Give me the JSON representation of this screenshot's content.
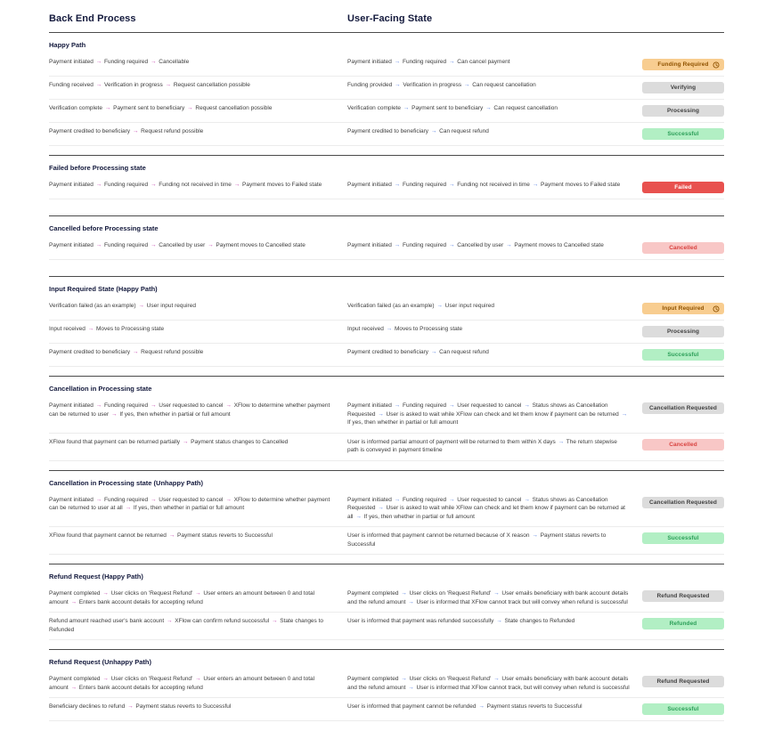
{
  "header": {
    "left": "Back End Process",
    "right": "User-Facing State"
  },
  "colors": {
    "backend_arrow": "#c443ae",
    "user_arrow": "#4f7ae0"
  },
  "badge_styles": {
    "orange": {
      "bg": "#f8cd90",
      "text": "#8f5200"
    },
    "gray": {
      "bg": "#dcdcdc",
      "text": "#3f3f3f"
    },
    "green": {
      "bg": "#b2efc4",
      "text": "#2a9e57"
    },
    "red": {
      "bg": "#e8514e",
      "text": "#ffffff"
    },
    "pink": {
      "bg": "#f8c7c6",
      "text": "#d8413e"
    }
  },
  "sections": [
    {
      "title": "Happy Path",
      "rows": [
        {
          "left": "Payment initiated → Funding required → Cancellable",
          "right": "Payment initiated → Funding required → Can cancel payment",
          "badge": {
            "label": "Funding Required",
            "style": "orange",
            "clock": true
          }
        },
        {
          "left": "Funding received → Verification in progress → Request cancellation possible",
          "right": "Funding provided → Verification in progress → Can request cancellation",
          "badge": {
            "label": "Verifying",
            "style": "gray",
            "clock": false
          }
        },
        {
          "left": "Verification complete → Payment sent to beneficiary → Request cancellation possible",
          "right": "Verification complete → Payment sent to beneficiary → Can request cancellation",
          "badge": {
            "label": "Processing",
            "style": "gray",
            "clock": false
          }
        },
        {
          "left": "Payment credited to beneficiary → Request refund possible",
          "right": "Payment credited to beneficiary → Can request refund",
          "badge": {
            "label": "Successful",
            "style": "green",
            "clock": false
          }
        }
      ]
    },
    {
      "title": "Failed before Processing state",
      "rows": [
        {
          "left": "Payment initiated → Funding required → Funding not received in time → Payment moves to Failed state",
          "right": "Payment initiated → Funding required → Funding not received in time → Payment moves to Failed state",
          "badge": {
            "label": "Failed",
            "style": "red",
            "clock": false
          }
        }
      ]
    },
    {
      "title": "Cancelled before Processing state",
      "rows": [
        {
          "left": "Payment initiated → Funding required → Cancelled by user → Payment moves to Cancelled state",
          "right": "Payment initiated → Funding required → Cancelled by user → Payment moves to Cancelled state",
          "badge": {
            "label": "Cancelled",
            "style": "pink",
            "clock": false
          }
        }
      ]
    },
    {
      "title": "Input Required State (Happy Path)",
      "rows": [
        {
          "left": "Verification failed (as an example) → User input required",
          "right": "Verification failed (as an example) → User input required",
          "badge": {
            "label": "Input Required",
            "style": "orange",
            "clock": true
          }
        },
        {
          "left": "Input received → Moves to Processing state",
          "right": "Input received → Moves to Processing state",
          "badge": {
            "label": "Processing",
            "style": "gray",
            "clock": false
          }
        },
        {
          "left": "Payment credited to beneficiary → Request refund possible",
          "right": "Payment credited to beneficiary → Can request refund",
          "badge": {
            "label": "Successful",
            "style": "green",
            "clock": false
          }
        }
      ]
    },
    {
      "title": "Cancellation in Processing state",
      "rows": [
        {
          "left": "Payment initiated → Funding required → User requested to cancel → XFlow to determine whether payment can be returned to user → If yes, then whether in partial or full amount",
          "right": "Payment initiated → Funding required → User requested to cancel → Status shows as Cancellation Requested → User is asked to wait while XFlow can check and let them know if payment can be returned → If yes, then whether in partial or full amount",
          "badge": {
            "label": "Cancellation Requested",
            "style": "gray",
            "clock": false
          }
        },
        {
          "left": "XFlow found that payment can be returned partially → Payment status changes to Cancelled",
          "right": "User is informed partial amount of payment will be returned to them within X days → The return stepwise path is conveyed in payment timeline",
          "badge": {
            "label": "Cancelled",
            "style": "pink",
            "clock": false
          }
        }
      ]
    },
    {
      "title": "Cancellation in Processing state (Unhappy Path)",
      "rows": [
        {
          "left": "Payment initiated → Funding required → User requested to cancel → XFlow to determine whether payment can be returned to user at all → If yes, then whether in partial or full amount",
          "right": "Payment initiated → Funding required → User requested to cancel → Status shows as Cancellation Requested → User is asked to wait while XFlow can check and let them know if payment can be returned at all → If yes, then whether in partial or full amount",
          "badge": {
            "label": "Cancellation Requested",
            "style": "gray",
            "clock": false
          }
        },
        {
          "left": "XFlow found that payment cannot be returned → Payment status reverts to Successful",
          "right": "User is informed that payment cannot be returned because of X reason → Payment status reverts to Successful",
          "badge": {
            "label": "Successful",
            "style": "green",
            "clock": false
          }
        }
      ]
    },
    {
      "title": "Refund Request (Happy Path)",
      "rows": [
        {
          "left": "Payment completed → User clicks on 'Request Refund'  → User enters an amount between 0 and total amount → Enters bank account details for accepting refund",
          "right": "Payment completed → User clicks on 'Request Refund' → User emails beneficiary with bank account details and the refund amount → User is informed that XFlow cannot track but will convey when refund is successful",
          "badge": {
            "label": "Refund Requested",
            "style": "gray",
            "clock": false
          }
        },
        {
          "left": "Refund amount reached user's bank account → XFlow can confirm refund successful → State changes to Refunded",
          "right": "User is informed that payment was refunded successfully → State changes to Refunded",
          "badge": {
            "label": "Refunded",
            "style": "green",
            "clock": false
          }
        }
      ]
    },
    {
      "title": "Refund Request (Unhappy Path)",
      "rows": [
        {
          "left": "Payment completed → User clicks on 'Request Refund'  → User enters an amount between 0 and total amount → Enters bank account details for accepting refund",
          "right": "Payment completed → User clicks on 'Request Refund' → User emails beneficiary with bank account details and the refund amount → User is informed that XFlow cannot track, but will convey when refund is successful",
          "badge": {
            "label": "Refund Requested",
            "style": "gray",
            "clock": false
          }
        },
        {
          "left": "Beneficiary declines to refund → Payment status reverts to Successful",
          "right": "User is informed that payment cannot be refunded → Payment status reverts to Successful",
          "badge": {
            "label": "Successful",
            "style": "green",
            "clock": false
          }
        }
      ]
    }
  ]
}
